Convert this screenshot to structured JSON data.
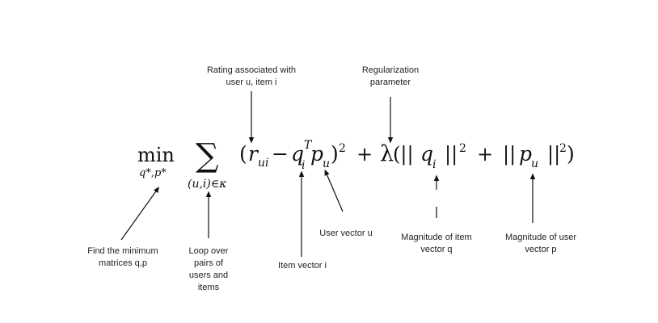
{
  "formula": {
    "min": "min",
    "min_sub": "q*,p*",
    "sum": "∑",
    "sum_sub": "(u,i)∈κ",
    "open_paren": "(",
    "r": "r",
    "r_sub": "ui",
    "minus": "−",
    "q": "q",
    "q_sub": "i",
    "q_sup": "T",
    "p": "p",
    "p_sub": "u",
    "close_paren": ")",
    "square": "2",
    "plus1": "+",
    "lambda": "λ",
    "norm_open": "(||",
    "q2": "q",
    "q2_sub": "i",
    "norm_close": "||",
    "square2": "2",
    "plus2": "+",
    "norm_open2": "||",
    "p2": "p",
    "p2_sub": "u",
    "norm_close2": "||",
    "square3": "2",
    "close_final": ")"
  },
  "annotations": {
    "rating": [
      "Rating associated with",
      "user u, item i"
    ],
    "regularization": [
      "Regularization",
      "parameter"
    ],
    "find_min": [
      "Find the minimum",
      "matrices q,p"
    ],
    "loop": [
      "Loop over",
      "pairs of",
      "users and",
      "items"
    ],
    "item_vector": [
      "Item vector i"
    ],
    "user_vector": [
      "User vector u"
    ],
    "mag_item": [
      "Magnitude of item",
      "vector q"
    ],
    "mag_user": [
      "Magnitude of user",
      "vector p"
    ]
  }
}
